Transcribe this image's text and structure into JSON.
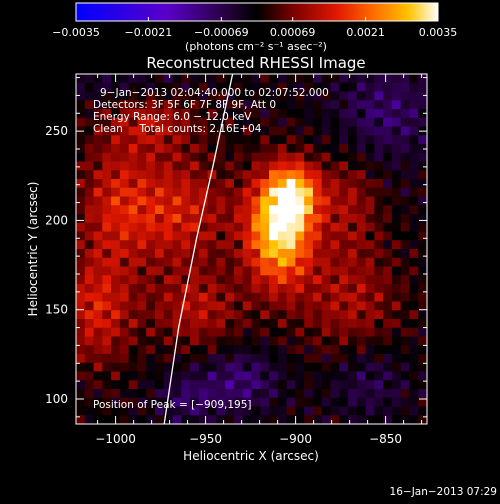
{
  "chart_data": {
    "type": "heatmap",
    "title": "Reconstructed RHESSI Image",
    "xlabel": "Heliocentric X (arcsec)",
    "ylabel": "Heliocentric Y (arcsec)",
    "xlim": [
      -1022,
      -827
    ],
    "ylim": [
      86,
      282
    ],
    "xticks": [
      -1000,
      -950,
      -900,
      -850
    ],
    "xtick_labels": [
      "−1000",
      "−950",
      "−900",
      "−850"
    ],
    "yticks": [
      100,
      150,
      200,
      250
    ],
    "ytick_labels": [
      "100",
      "150",
      "200",
      "250"
    ],
    "colorbar": {
      "range": [
        -0.0035,
        0.0035
      ],
      "ticks": [
        -0.0035,
        -0.0021,
        -0.00069,
        0.00069,
        0.0021,
        0.0035
      ],
      "tick_labels": [
        "−0.0035",
        "−0.0021",
        "−0.00069",
        "0.00069",
        "0.0021",
        "0.0035"
      ],
      "unit_label": "(photons cm⁻² s⁻¹ asec⁻²)"
    },
    "annotations": [
      "9−Jan−2013 02:04:40.000 to 02:07:52.000",
      "Detectors: 3F 5F 6F 7F 8F 9F, Att 0",
      "Energy Range: 6.0 − 12.0 keV",
      "Clean     Total counts: 2.16E+04"
    ],
    "peak_label": "Position of Peak = [−909,195]",
    "peak": [
      -909,
      195
    ],
    "limb_curve": [
      [
        -973,
        86
      ],
      [
        -965,
        140
      ],
      [
        -955,
        190
      ],
      [
        -946,
        230
      ],
      [
        -935,
        282
      ]
    ],
    "sources": [
      {
        "x": -909,
        "y": 195,
        "amp": 0.0033,
        "sx": 13,
        "sy": 22
      },
      {
        "x": -900,
        "y": 215,
        "amp": 0.002,
        "sx": 10,
        "sy": 12
      },
      {
        "x": -965,
        "y": 205,
        "amp": 0.0014,
        "sx": 20,
        "sy": 22
      },
      {
        "x": -1000,
        "y": 210,
        "amp": 0.0012,
        "sx": 15,
        "sy": 25
      },
      {
        "x": -1010,
        "y": 150,
        "amp": 0.0014,
        "sx": 14,
        "sy": 22
      },
      {
        "x": -955,
        "y": 150,
        "amp": 0.0011,
        "sx": 18,
        "sy": 15
      },
      {
        "x": -870,
        "y": 155,
        "amp": 0.001,
        "sx": 20,
        "sy": 22
      },
      {
        "x": -870,
        "y": 210,
        "amp": 0.0009,
        "sx": 12,
        "sy": 20
      },
      {
        "x": -980,
        "y": 255,
        "amp": 0.001,
        "sx": 18,
        "sy": 12
      },
      {
        "x": -930,
        "y": 110,
        "amp": -0.001,
        "sx": 15,
        "sy": 12
      },
      {
        "x": -960,
        "y": 100,
        "amp": -0.0008,
        "sx": 12,
        "sy": 10
      },
      {
        "x": -850,
        "y": 260,
        "amp": -0.0009,
        "sx": 20,
        "sy": 20
      },
      {
        "x": -860,
        "y": 110,
        "amp": -0.0007,
        "sx": 15,
        "sy": 15
      },
      {
        "x": -995,
        "y": 275,
        "amp": -0.0005,
        "sx": 25,
        "sy": 8
      }
    ],
    "colormap": [
      {
        "v": 0.0,
        "c": "#0000ff"
      },
      {
        "v": 0.25,
        "c": "#5a00c8"
      },
      {
        "v": 0.42,
        "c": "#25003a"
      },
      {
        "v": 0.5,
        "c": "#000000"
      },
      {
        "v": 0.6,
        "c": "#7a0000"
      },
      {
        "v": 0.72,
        "c": "#e01800"
      },
      {
        "v": 0.82,
        "c": "#ff6a00"
      },
      {
        "v": 0.92,
        "c": "#ffc400"
      },
      {
        "v": 1.0,
        "c": "#ffffff"
      }
    ],
    "grid": false
  },
  "footer": {
    "timestamp": "16−Jan−2013 07:29"
  }
}
